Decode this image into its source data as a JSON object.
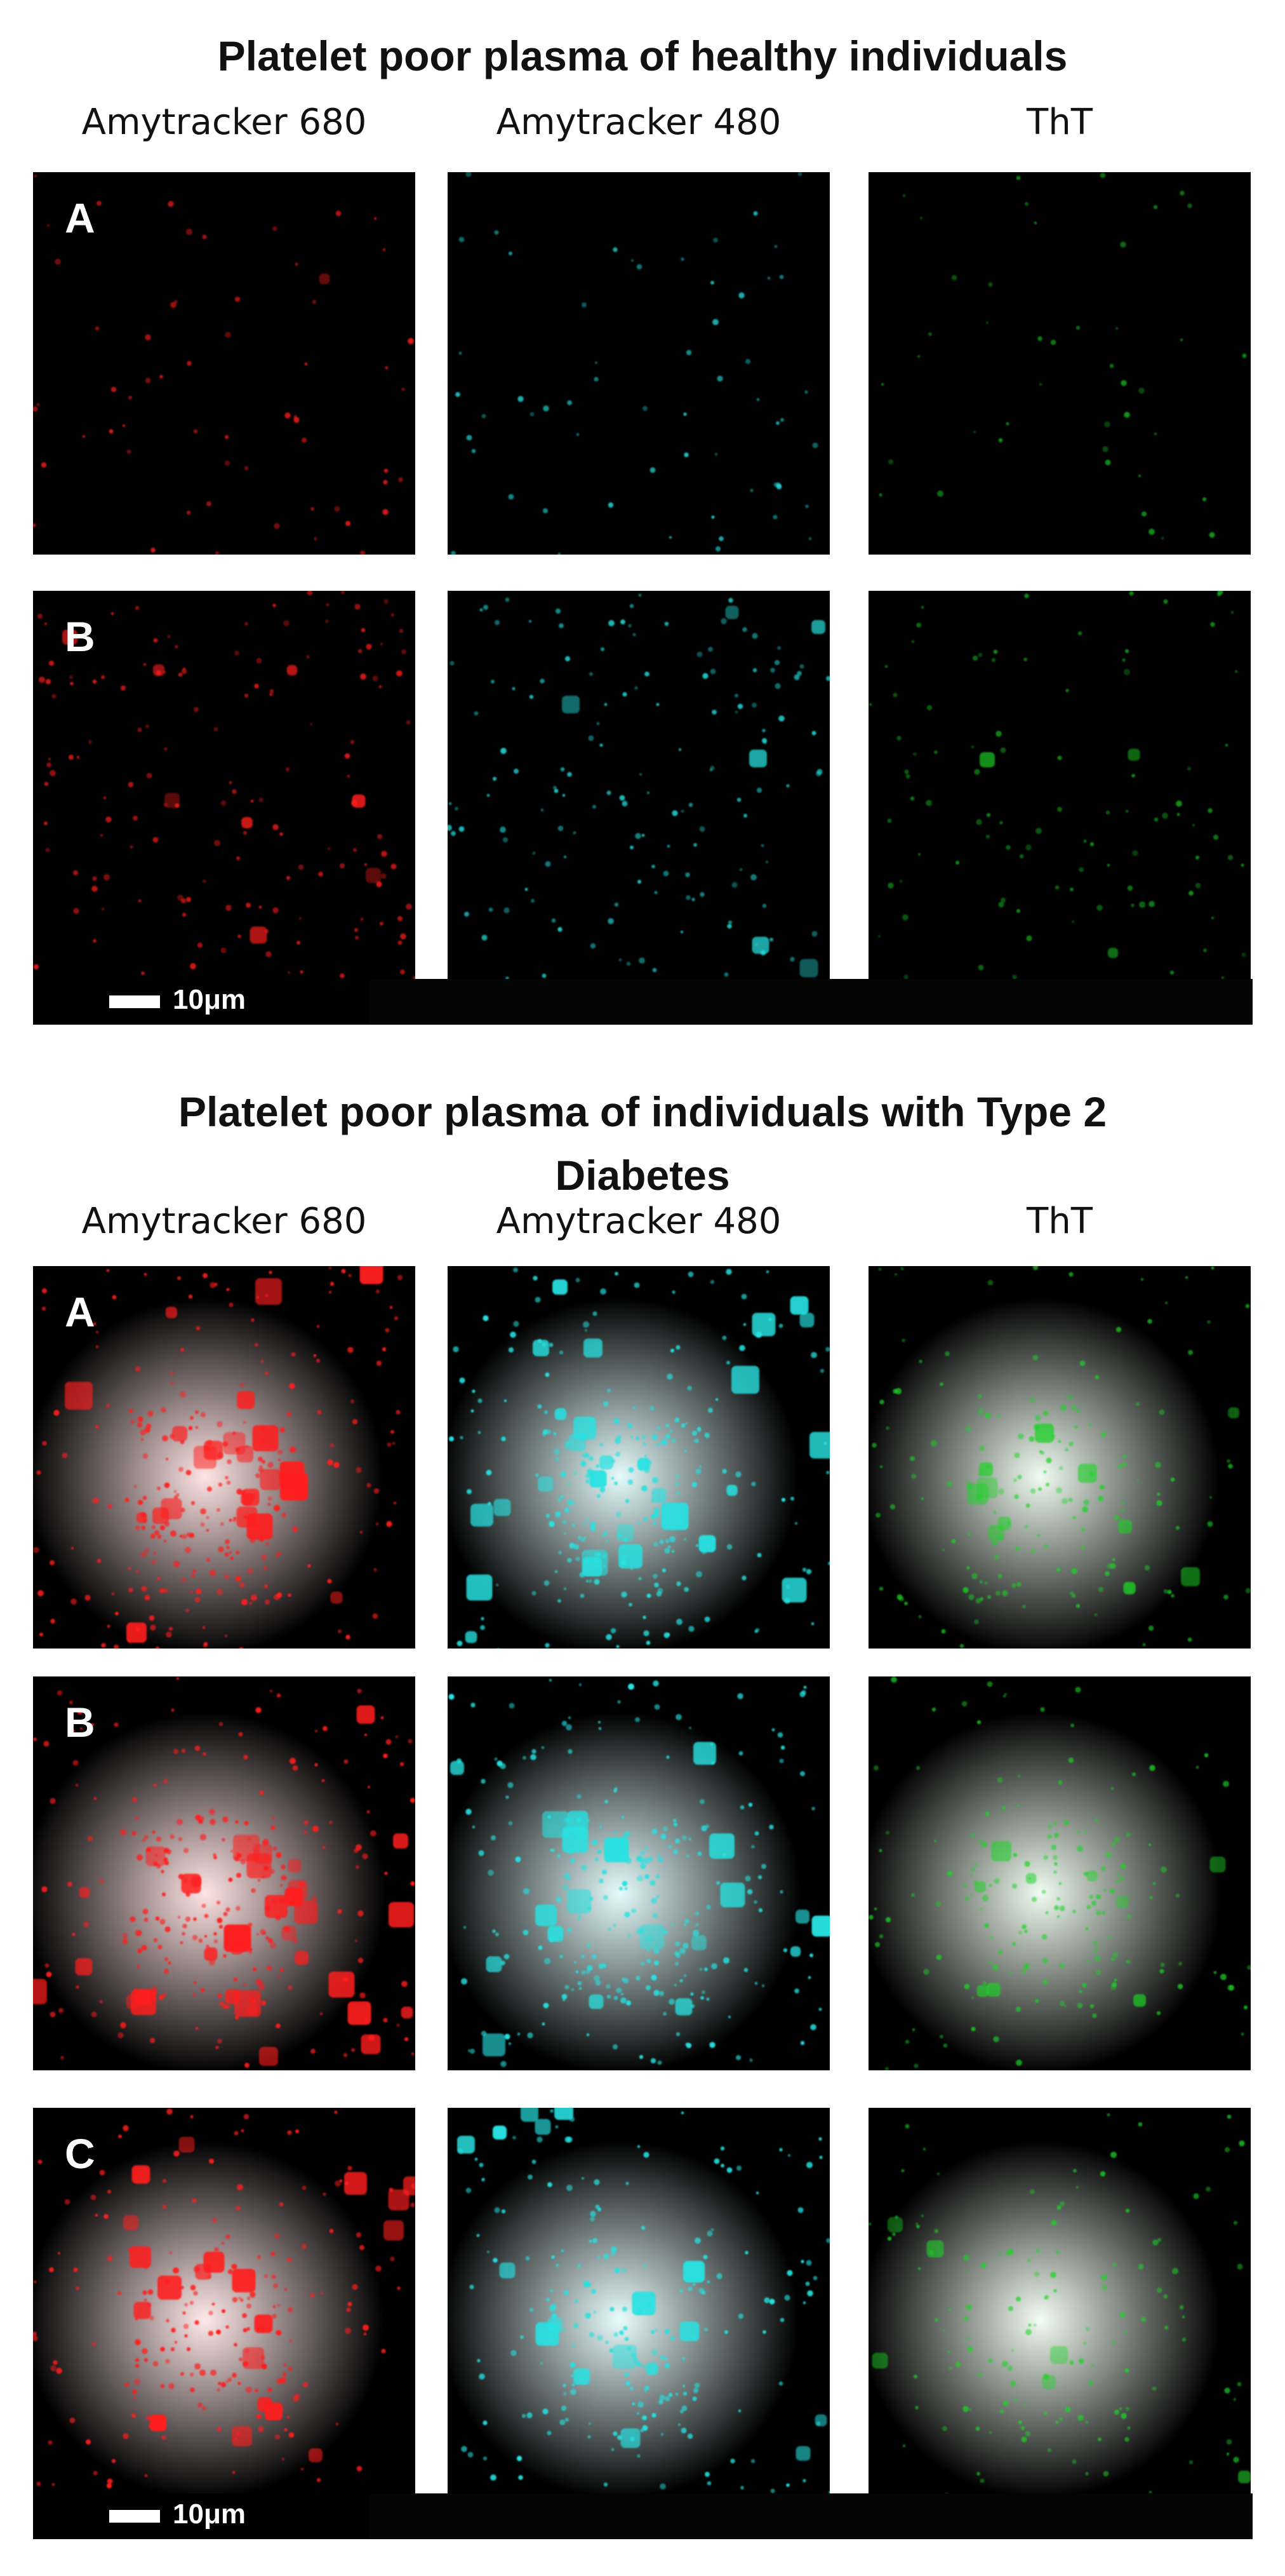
{
  "sections": [
    {
      "title": "Platelet poor plasma of healthy individuals",
      "columns": [
        "Amytracker 680",
        "Amytracker 480",
        "ThT"
      ],
      "rows": [
        "A",
        "B"
      ],
      "scale_bar": "10μm"
    },
    {
      "title": "Platelet poor plasma of individuals with Type 2 Diabetes",
      "columns": [
        "Amytracker 680",
        "Amytracker 480",
        "ThT"
      ],
      "rows": [
        "A",
        "B",
        "C"
      ],
      "scale_bar": "10μm"
    }
  ]
}
